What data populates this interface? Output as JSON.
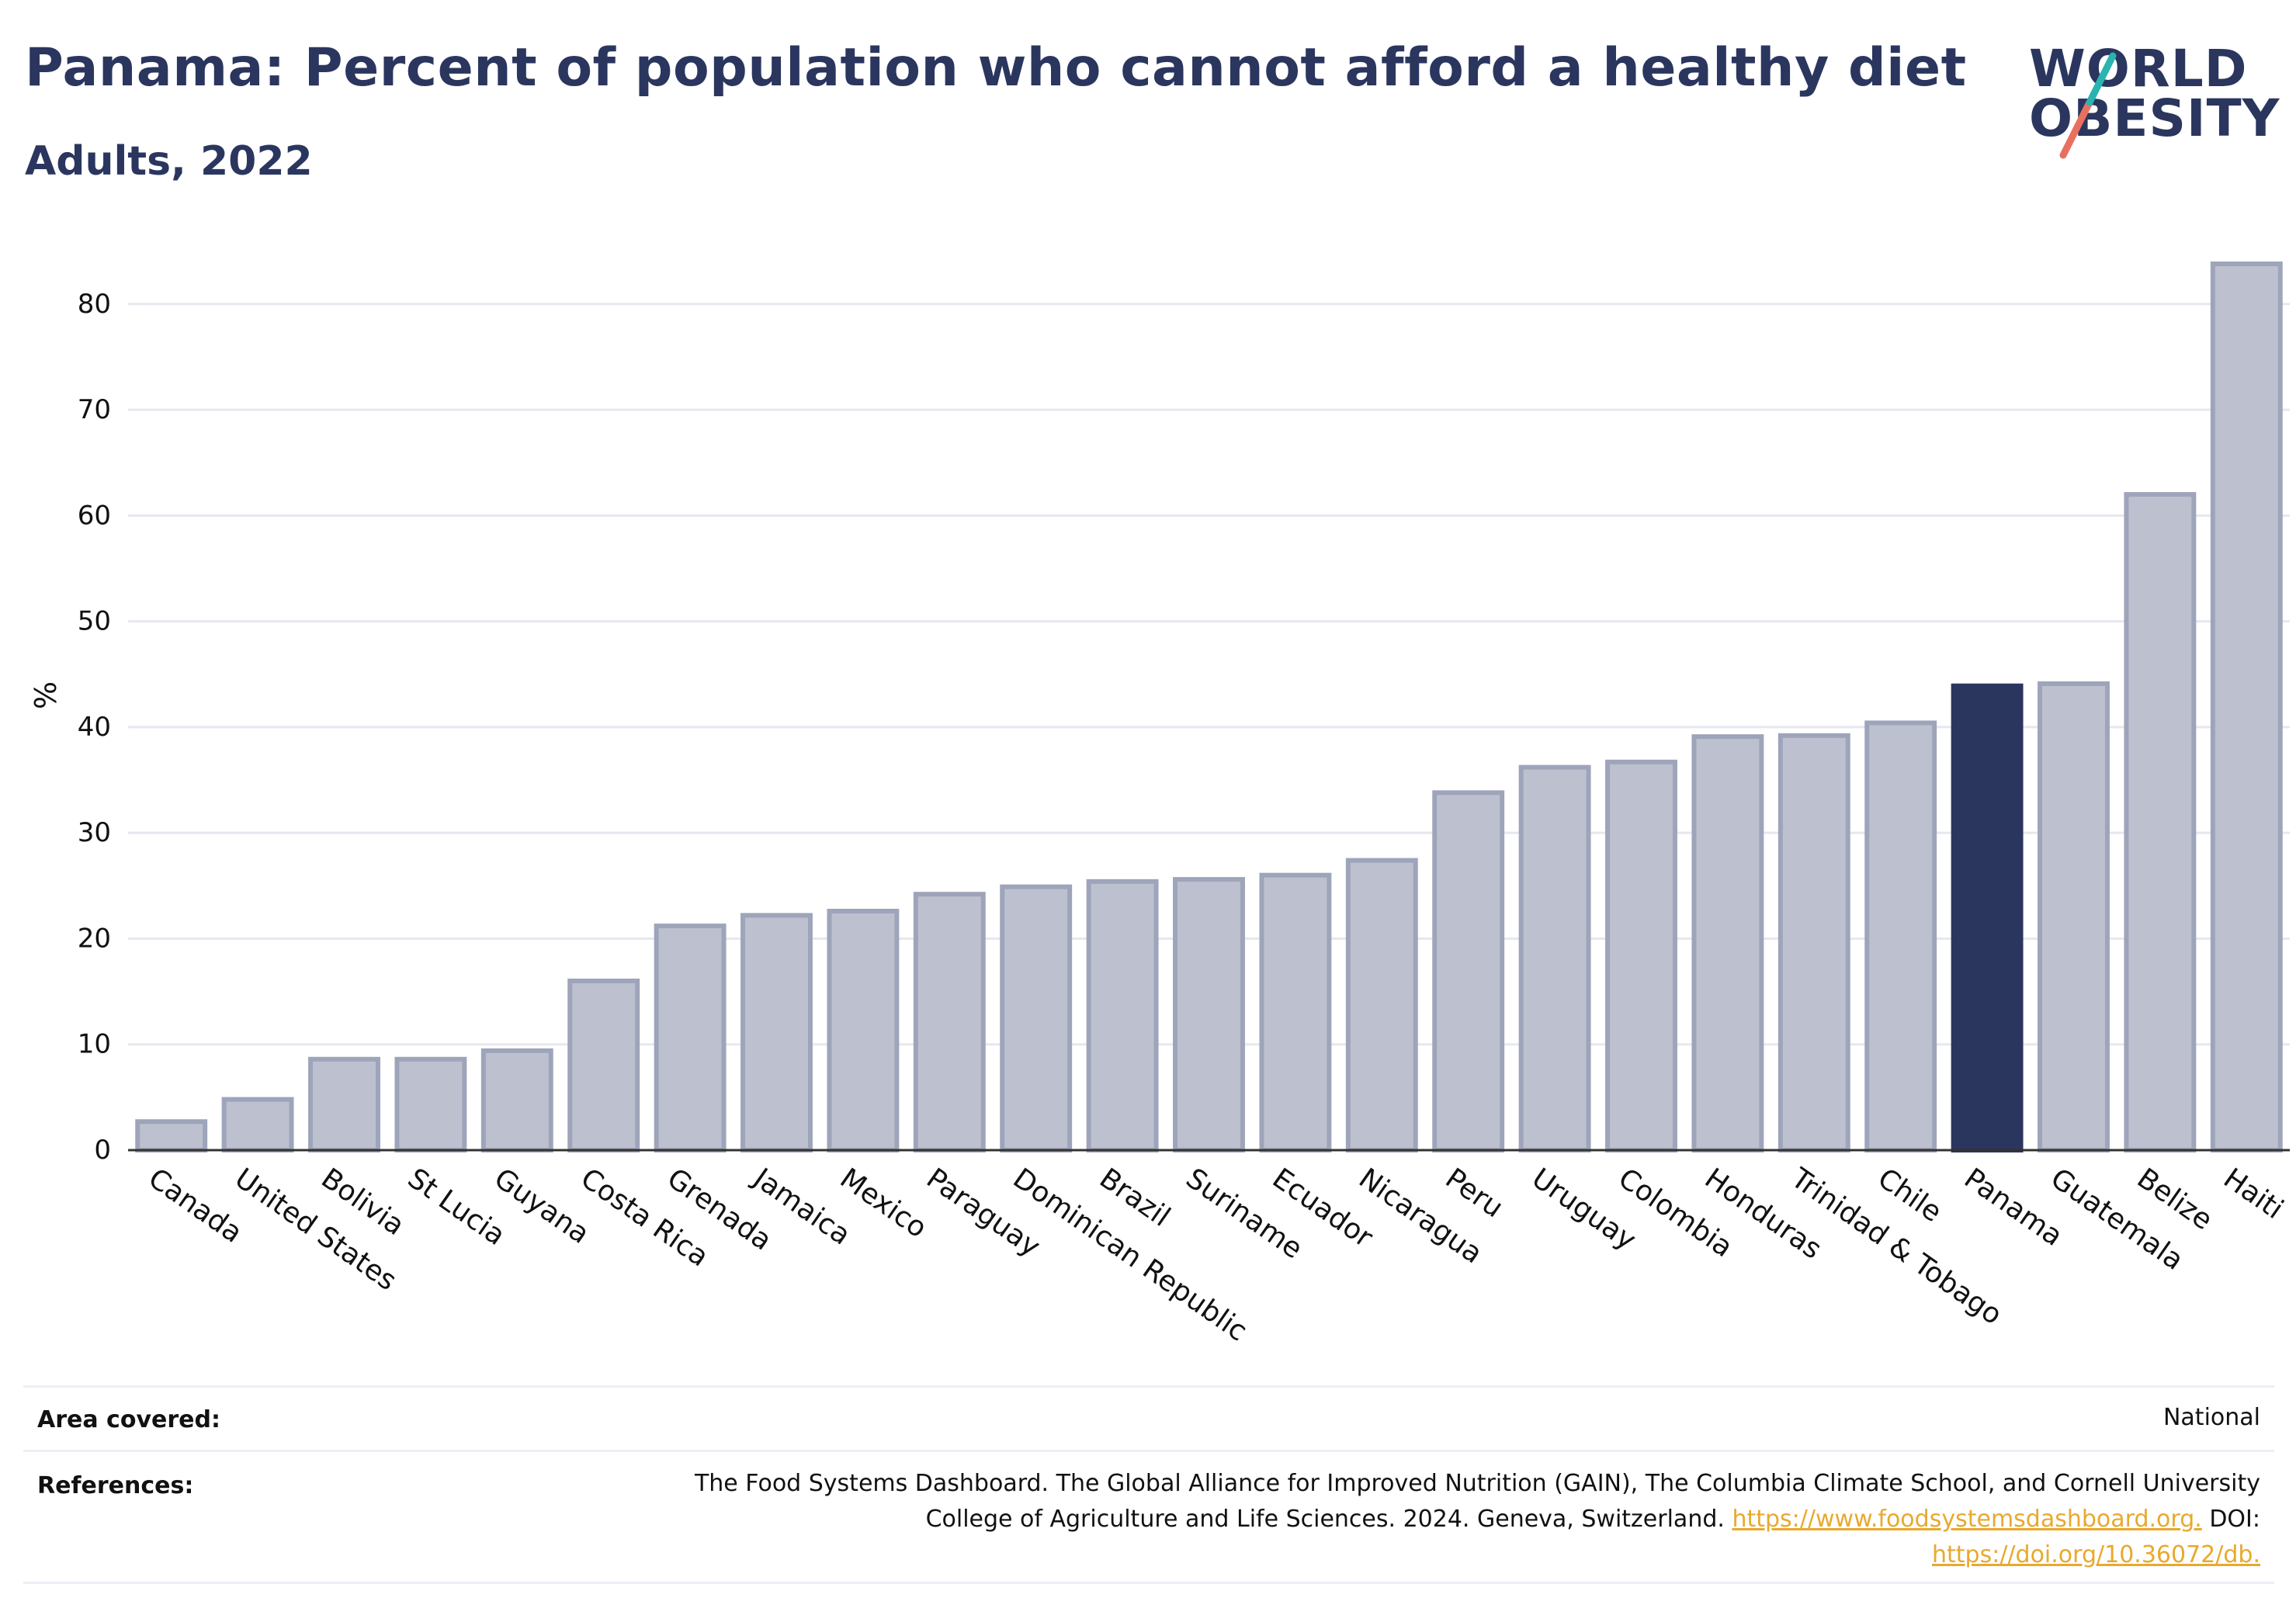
{
  "header": {
    "title": "Panama: Percent of population who cannot afford a healthy diet",
    "subtitle": "Adults, 2022"
  },
  "logo": {
    "line1": "WORLD",
    "line2": "OBESITY",
    "accent_teal": "#2ab3b0",
    "accent_red": "#e8705f"
  },
  "chart_data": {
    "type": "bar",
    "ylabel": "%",
    "xlabel": "",
    "ylim": [
      0,
      86
    ],
    "yticks": [
      0,
      10,
      20,
      30,
      40,
      50,
      60,
      70,
      80
    ],
    "grid": true,
    "highlight": "Panama",
    "highlight_color": "#2b365f",
    "bar_color": "#bdc1cf",
    "bar_edge_color": "#9ea4ba",
    "categories": [
      "Canada",
      "United States",
      "Bolivia",
      "St Lucia",
      "Guyana",
      "Costa Rica",
      "Grenada",
      "Jamaica",
      "Mexico",
      "Paraguay",
      "Dominican Republic",
      "Brazil",
      "Suriname",
      "Ecuador",
      "Nicaragua",
      "Peru",
      "Uruguay",
      "Colombia",
      "Honduras",
      "Trinidad & Tobago",
      "Chile",
      "Panama",
      "Guatemala",
      "Belize",
      "Haiti"
    ],
    "values": [
      2.7,
      4.8,
      8.6,
      8.6,
      9.4,
      16.0,
      21.2,
      22.2,
      22.6,
      24.2,
      24.9,
      25.4,
      25.6,
      26.0,
      27.4,
      33.8,
      36.2,
      36.7,
      39.1,
      39.2,
      40.4,
      43.9,
      44.1,
      62.0,
      83.8
    ]
  },
  "footer": {
    "area_label": "Area covered:",
    "area_value": "National",
    "ref_label": "References:",
    "ref_line1": "The Food Systems Dashboard. The Global Alliance for Improved Nutrition (GAIN), The Columbia Climate School, and Cornell University",
    "ref_line2_text": "College of Agriculture and Life Sciences. 2024. Geneva, Switzerland.",
    "ref_link1": "https://www.foodsystemsdashboard.org.",
    "ref_doi_label": "DOI:",
    "ref_link2": "https://doi.org/10.36072/db."
  }
}
